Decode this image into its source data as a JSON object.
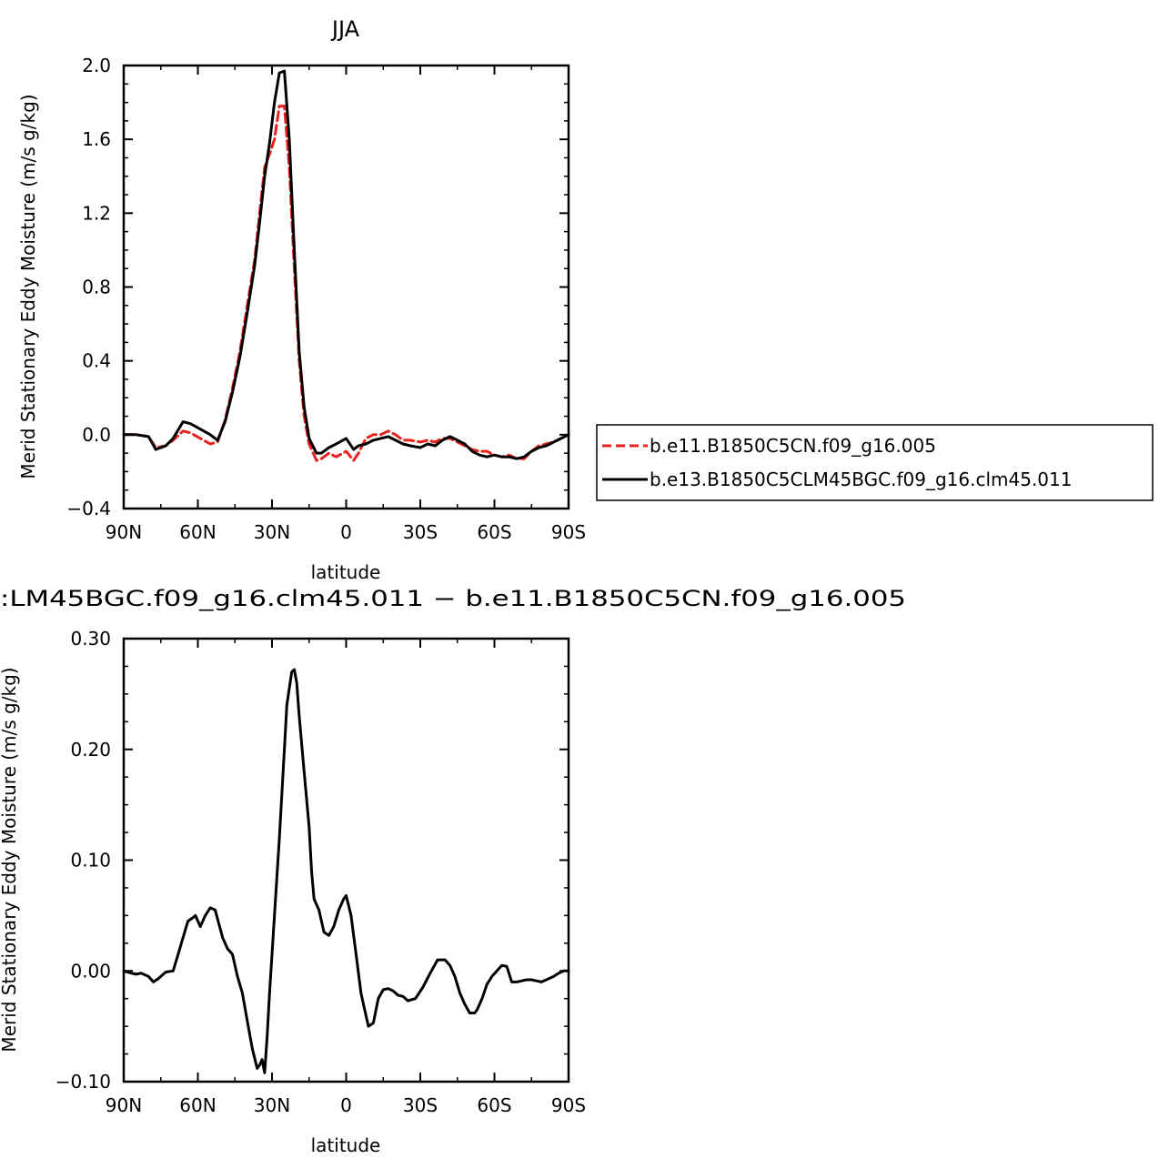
{
  "chart_data": [
    {
      "type": "line",
      "title": "JJA",
      "xlabel": "latitude",
      "ylabel": "Merid Stationary Eddy Moisture (m/s g/kg)",
      "xlim": [
        90,
        -90
      ],
      "ylim": [
        -0.4,
        2.0
      ],
      "x_ticks": [
        90,
        60,
        30,
        0,
        -30,
        -60,
        -90
      ],
      "x_tick_labels": [
        "90N",
        "60N",
        "30N",
        "0",
        "30S",
        "60S",
        "90S"
      ],
      "y_ticks": [
        -0.4,
        0.0,
        0.4,
        0.8,
        1.2,
        1.6,
        2.0
      ],
      "y_tick_labels": [
        "−0.4",
        "0.0",
        "0.4",
        "0.8",
        "1.2",
        "1.6",
        "2.0"
      ],
      "grid": false,
      "legend_position": "right",
      "series": [
        {
          "name": "b.e11.B1850C5CN.f09_g16.005",
          "color": "#e8201e",
          "dash": "dashed",
          "x": [
            90,
            85,
            80,
            77,
            73,
            70,
            66,
            63,
            59,
            55,
            52,
            49,
            46,
            43,
            40,
            37,
            35,
            33,
            31,
            29,
            27,
            25,
            23,
            21,
            19,
            17,
            15,
            12,
            10,
            7,
            4,
            0,
            -3,
            -5,
            -8,
            -11,
            -14,
            -17,
            -20,
            -23,
            -26,
            -30,
            -33,
            -36,
            -39,
            -42,
            -45,
            -48,
            -51,
            -54,
            -57,
            -60,
            -63,
            -66,
            -69,
            -72,
            -75,
            -78,
            -81,
            -84,
            -87,
            -90
          ],
          "y": [
            0.0,
            0.0,
            -0.01,
            -0.07,
            -0.06,
            -0.03,
            0.02,
            0.01,
            -0.02,
            -0.05,
            -0.04,
            0.08,
            0.25,
            0.45,
            0.7,
            0.95,
            1.2,
            1.45,
            1.52,
            1.6,
            1.78,
            1.78,
            1.45,
            0.9,
            0.4,
            0.1,
            -0.05,
            -0.14,
            -0.13,
            -0.1,
            -0.12,
            -0.09,
            -0.14,
            -0.1,
            -0.02,
            0.0,
            0.0,
            0.02,
            0.0,
            -0.03,
            -0.03,
            -0.04,
            -0.03,
            -0.04,
            -0.02,
            -0.02,
            -0.04,
            -0.06,
            -0.08,
            -0.09,
            -0.09,
            -0.11,
            -0.12,
            -0.11,
            -0.13,
            -0.13,
            -0.09,
            -0.06,
            -0.05,
            -0.04,
            -0.02,
            0.0
          ]
        },
        {
          "name": "b.e13.B1850C5CLM45BGC.f09_g16.clm45.011",
          "color": "#000000",
          "dash": "solid",
          "x": [
            90,
            85,
            80,
            77,
            73,
            70,
            66,
            63,
            59,
            55,
            52,
            49,
            46,
            43,
            40,
            37,
            35,
            33,
            31,
            29,
            27,
            25,
            23,
            21,
            19,
            17,
            15,
            12,
            10,
            7,
            4,
            0,
            -3,
            -5,
            -8,
            -11,
            -14,
            -17,
            -20,
            -23,
            -26,
            -30,
            -33,
            -36,
            -39,
            -42,
            -45,
            -48,
            -51,
            -54,
            -57,
            -60,
            -63,
            -66,
            -69,
            -72,
            -75,
            -78,
            -81,
            -84,
            -87,
            -90
          ],
          "y": [
            0.0,
            0.0,
            -0.01,
            -0.08,
            -0.06,
            -0.02,
            0.07,
            0.06,
            0.03,
            0.0,
            -0.03,
            0.07,
            0.23,
            0.42,
            0.66,
            0.92,
            1.15,
            1.4,
            1.58,
            1.8,
            1.96,
            1.97,
            1.6,
            1.0,
            0.45,
            0.15,
            -0.02,
            -0.1,
            -0.1,
            -0.07,
            -0.05,
            -0.02,
            -0.08,
            -0.06,
            -0.05,
            -0.03,
            -0.02,
            -0.01,
            -0.03,
            -0.05,
            -0.06,
            -0.07,
            -0.05,
            -0.06,
            -0.03,
            -0.01,
            -0.03,
            -0.05,
            -0.09,
            -0.11,
            -0.12,
            -0.11,
            -0.12,
            -0.12,
            -0.13,
            -0.12,
            -0.09,
            -0.07,
            -0.06,
            -0.04,
            -0.02,
            0.0
          ]
        }
      ]
    },
    {
      "type": "line",
      "title": ":LM45BGC.f09_g16.clm45.011 − b.e11.B1850C5CN.f09_g16.005",
      "xlabel": "latitude",
      "ylabel": "Merid Stationary Eddy Moisture (m/s g/kg)",
      "xlim": [
        90,
        -90
      ],
      "ylim": [
        -0.1,
        0.3
      ],
      "x_ticks": [
        90,
        60,
        30,
        0,
        -30,
        -60,
        -90
      ],
      "x_tick_labels": [
        "90N",
        "60N",
        "30N",
        "0",
        "30S",
        "60S",
        "90S"
      ],
      "y_ticks": [
        -0.1,
        0.0,
        0.1,
        0.2,
        0.3
      ],
      "y_tick_labels": [
        "−0.10",
        "0.00",
        "0.10",
        "0.20",
        "0.30"
      ],
      "grid": false,
      "series": [
        {
          "color": "#000000",
          "dash": "solid",
          "x": [
            90,
            87,
            85,
            83,
            80,
            78,
            76,
            73,
            70,
            68,
            66,
            64,
            62,
            61,
            59,
            57,
            55,
            53,
            50,
            48,
            46,
            44,
            42,
            40,
            38,
            36,
            35,
            34,
            33,
            32,
            31,
            29,
            27,
            25,
            24,
            22,
            21,
            20,
            19,
            17,
            15,
            14,
            13,
            11,
            9,
            7,
            5,
            3,
            1,
            0,
            -2,
            -4,
            -6,
            -8,
            -9,
            -11,
            -13,
            -15,
            -17,
            -19,
            -21,
            -23,
            -25,
            -28,
            -31,
            -34,
            -37,
            -40,
            -42,
            -44,
            -46,
            -48,
            -50,
            -52,
            -53,
            -55,
            -57,
            -59,
            -61,
            -63,
            -65,
            -67,
            -69,
            -71,
            -73,
            -75,
            -77,
            -79,
            -81,
            -84,
            -86,
            -88,
            -90
          ],
          "y": [
            0.0,
            -0.002,
            -0.003,
            -0.002,
            -0.005,
            -0.01,
            -0.007,
            -0.001,
            0.0,
            0.015,
            0.03,
            0.045,
            0.048,
            0.05,
            0.04,
            0.05,
            0.057,
            0.055,
            0.03,
            0.02,
            0.015,
            -0.005,
            -0.02,
            -0.045,
            -0.07,
            -0.088,
            -0.085,
            -0.08,
            -0.092,
            -0.06,
            -0.02,
            0.05,
            0.12,
            0.2,
            0.24,
            0.27,
            0.272,
            0.26,
            0.23,
            0.18,
            0.13,
            0.09,
            0.065,
            0.055,
            0.035,
            0.032,
            0.04,
            0.055,
            0.065,
            0.068,
            0.05,
            0.015,
            -0.02,
            -0.04,
            -0.05,
            -0.047,
            -0.025,
            -0.017,
            -0.016,
            -0.018,
            -0.022,
            -0.023,
            -0.027,
            -0.025,
            -0.015,
            -0.002,
            0.01,
            0.01,
            0.005,
            -0.005,
            -0.02,
            -0.03,
            -0.038,
            -0.038,
            -0.035,
            -0.025,
            -0.012,
            -0.005,
            0.0,
            0.005,
            0.004,
            -0.01,
            -0.01,
            -0.009,
            -0.008,
            -0.008,
            -0.009,
            -0.01,
            -0.008,
            -0.005,
            -0.002,
            0.0,
            0.0
          ]
        }
      ]
    }
  ]
}
